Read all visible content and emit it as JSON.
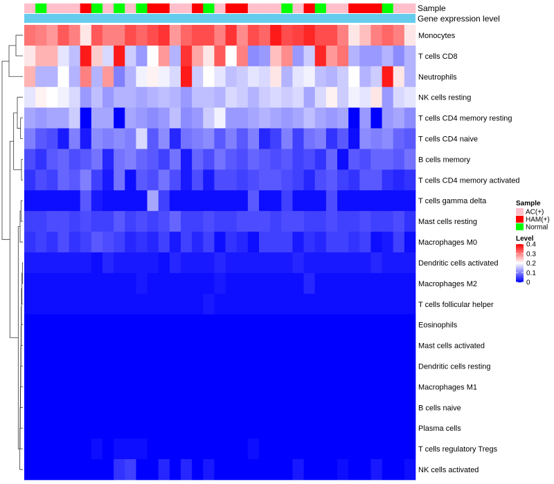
{
  "chart_data": {
    "type": "heatmap",
    "title": "",
    "annotation_tracks": [
      "Sample",
      "Gene expression level"
    ],
    "rows": [
      "Monocytes",
      "T cells CD8",
      "Neutrophils",
      "NK cells resting",
      "T cells CD4 memory resting",
      "T cells CD4 naive",
      "B cells memory",
      "T cells CD4 memory activated",
      "T cells gamma delta",
      "Mast cells resting",
      "Macrophages M0",
      "Dendritic cells activated",
      "Macrophages M2",
      "T cells follicular helper",
      "Eosinophils",
      "Mast cells activated",
      "Dendritic cells resting",
      "Macrophages M1",
      "B cells naive",
      "Plasma cells",
      "T cells regulatory  Tregs",
      "NK cells activated"
    ],
    "sample_groups": [
      "AC(+)",
      "Normal",
      "AC(+)",
      "AC(+)",
      "AC(+)",
      "HAM(+)",
      "Normal",
      "AC(+)",
      "Normal",
      "AC(+)",
      "Normal",
      "HAM(+)",
      "HAM(+)",
      "AC(+)",
      "AC(+)",
      "HAM(+)",
      "Normal",
      "AC(+)",
      "HAM(+)",
      "HAM(+)",
      "AC(+)",
      "AC(+)",
      "AC(+)",
      "Normal",
      "AC(+)",
      "HAM(+)",
      "Normal",
      "AC(+)",
      "AC(+)",
      "HAM(+)",
      "HAM(+)",
      "HAM(+)",
      "Normal",
      "AC(+)",
      "AC(+)"
    ],
    "values": [
      [
        0.31,
        0.3,
        0.28,
        0.33,
        0.3,
        0.22,
        0.33,
        0.3,
        0.3,
        0.34,
        0.32,
        0.34,
        0.36,
        0.28,
        0.32,
        0.34,
        0.34,
        0.3,
        0.36,
        0.29,
        0.34,
        0.32,
        0.38,
        0.34,
        0.35,
        0.37,
        0.34,
        0.34,
        0.3,
        0.22,
        0.25,
        0.3,
        0.32,
        0.3,
        0.22
      ],
      [
        0.22,
        0.26,
        0.26,
        0.18,
        0.15,
        0.38,
        0.24,
        0.17,
        0.38,
        0.16,
        0.12,
        0.2,
        0.28,
        0.14,
        0.36,
        0.27,
        0.22,
        0.33,
        0.2,
        0.3,
        0.11,
        0.12,
        0.25,
        0.29,
        0.12,
        0.16,
        0.37,
        0.28,
        0.31,
        0.14,
        0.12,
        0.12,
        0.14,
        0.11,
        0.14
      ],
      [
        0.26,
        0.14,
        0.14,
        0.2,
        0.14,
        0.3,
        0.14,
        0.28,
        0.1,
        0.14,
        0.19,
        0.21,
        0.19,
        0.17,
        0.38,
        0.16,
        0.2,
        0.18,
        0.15,
        0.16,
        0.18,
        0.17,
        0.22,
        0.14,
        0.18,
        0.19,
        0.15,
        0.14,
        0.16,
        0.2,
        0.14,
        0.16,
        0.38,
        0.22,
        0.14
      ],
      [
        0.18,
        0.21,
        0.2,
        0.19,
        0.17,
        0.12,
        0.15,
        0.12,
        0.14,
        0.14,
        0.13,
        0.14,
        0.15,
        0.14,
        0.12,
        0.15,
        0.15,
        0.14,
        0.17,
        0.16,
        0.14,
        0.16,
        0.17,
        0.16,
        0.17,
        0.13,
        0.17,
        0.21,
        0.16,
        0.19,
        0.18,
        0.22,
        0.12,
        0.17,
        0.18
      ],
      [
        0.13,
        0.12,
        0.13,
        0.13,
        0.16,
        0.0,
        0.13,
        0.13,
        0.0,
        0.13,
        0.12,
        0.11,
        0.12,
        0.15,
        0.11,
        0.12,
        0.16,
        0.19,
        0.12,
        0.12,
        0.13,
        0.14,
        0.13,
        0.12,
        0.13,
        0.15,
        0.13,
        0.12,
        0.13,
        0.0,
        0.12,
        0.0,
        0.12,
        0.13,
        0.11
      ],
      [
        0.1,
        0.07,
        0.06,
        0.02,
        0.1,
        0.02,
        0.11,
        0.1,
        0.11,
        0.1,
        0.17,
        0.07,
        0.11,
        0.03,
        0.09,
        0.1,
        0.11,
        0.07,
        0.1,
        0.07,
        0.1,
        0.03,
        0.05,
        0.1,
        0.05,
        0.09,
        0.1,
        0.04,
        0.07,
        0.01,
        0.11,
        0.1,
        0.11,
        0.08,
        0.07
      ],
      [
        0.06,
        0.04,
        0.07,
        0.08,
        0.06,
        0.07,
        0.09,
        0.03,
        0.09,
        0.1,
        0.08,
        0.07,
        0.05,
        0.09,
        0.02,
        0.08,
        0.06,
        0.09,
        0.07,
        0.06,
        0.08,
        0.07,
        0.06,
        0.07,
        0.05,
        0.06,
        0.04,
        0.08,
        0.01,
        0.07,
        0.06,
        0.08,
        0.08,
        0.07,
        0.09
      ],
      [
        0.04,
        0.06,
        0.05,
        0.08,
        0.07,
        0.1,
        0.05,
        0.02,
        0.09,
        0.01,
        0.07,
        0.06,
        0.09,
        0.06,
        0.02,
        0.06,
        0.02,
        0.06,
        0.06,
        0.05,
        0.06,
        0.07,
        0.07,
        0.06,
        0.05,
        0.03,
        0.06,
        0.07,
        0.05,
        0.04,
        0.07,
        0.07,
        0.04,
        0.03,
        0.04
      ],
      [
        0.01,
        0.01,
        0.01,
        0.01,
        0.01,
        0.07,
        0.02,
        0.01,
        0.01,
        0.01,
        0.01,
        0.13,
        0.05,
        0.01,
        0.01,
        0.01,
        0.01,
        0.01,
        0.01,
        0.01,
        0.07,
        0.01,
        0.01,
        0.05,
        0.01,
        0.01,
        0.01,
        0.06,
        0.01,
        0.01,
        0.01,
        0.01,
        0.01,
        0.01,
        0.01
      ],
      [
        0.05,
        0.05,
        0.06,
        0.06,
        0.05,
        0.06,
        0.05,
        0.05,
        0.07,
        0.05,
        0.06,
        0.05,
        0.06,
        0.08,
        0.05,
        0.05,
        0.06,
        0.05,
        0.05,
        0.06,
        0.06,
        0.06,
        0.05,
        0.06,
        0.06,
        0.05,
        0.05,
        0.06,
        0.05,
        0.05,
        0.06,
        0.05,
        0.05,
        0.06,
        0.04
      ],
      [
        0.04,
        0.05,
        0.04,
        0.06,
        0.04,
        0.05,
        0.07,
        0.06,
        0.05,
        0.03,
        0.04,
        0.03,
        0.05,
        0.02,
        0.05,
        0.03,
        0.05,
        0.01,
        0.04,
        0.03,
        0.01,
        0.05,
        0.05,
        0.05,
        0.02,
        0.04,
        0.03,
        0.05,
        0.05,
        0.04,
        0.05,
        0.01,
        0.02,
        0.05,
        0.01
      ],
      [
        0.02,
        0.02,
        0.02,
        0.02,
        0.02,
        0.02,
        0.01,
        0.03,
        0.02,
        0.02,
        0.02,
        0.02,
        0.01,
        0.03,
        0.02,
        0.02,
        0.02,
        0.03,
        0.02,
        0.02,
        0.02,
        0.02,
        0.02,
        0.02,
        0.03,
        0.02,
        0.02,
        0.02,
        0.02,
        0.02,
        0.02,
        0.03,
        0.02,
        0.02,
        0.02
      ],
      [
        0.01,
        0.01,
        0.01,
        0.01,
        0.01,
        0.01,
        0.01,
        0.01,
        0.01,
        0.01,
        0.02,
        0.01,
        0.01,
        0.01,
        0.01,
        0.01,
        0.01,
        0.02,
        0.01,
        0.01,
        0.01,
        0.01,
        0.01,
        0.01,
        0.01,
        0.03,
        0.01,
        0.01,
        0.01,
        0.01,
        0.01,
        0.01,
        0.01,
        0.01,
        0.01
      ],
      [
        0.01,
        0.01,
        0.01,
        0.01,
        0.01,
        0.01,
        0.01,
        0.01,
        0.01,
        0.01,
        0.01,
        0.01,
        0.01,
        0.01,
        0.01,
        0.01,
        0.02,
        0.01,
        0.01,
        0.01,
        0.01,
        0.01,
        0.01,
        0.01,
        0.01,
        0.01,
        0.01,
        0.01,
        0.01,
        0.01,
        0.01,
        0.01,
        0.01,
        0.01,
        0.01
      ],
      [
        0.0,
        0.0,
        0.0,
        0.0,
        0.0,
        0.0,
        0.0,
        0.0,
        0.0,
        0.0,
        0.0,
        0.0,
        0.0,
        0.0,
        0.0,
        0.0,
        0.0,
        0.0,
        0.0,
        0.0,
        0.0,
        0.0,
        0.0,
        0.0,
        0.0,
        0.0,
        0.0,
        0.0,
        0.0,
        0.0,
        0.0,
        0.0,
        0.0,
        0.0,
        0.0
      ],
      [
        0.0,
        0.0,
        0.0,
        0.0,
        0.0,
        0.0,
        0.0,
        0.0,
        0.0,
        0.0,
        0.0,
        0.0,
        0.0,
        0.0,
        0.0,
        0.0,
        0.0,
        0.0,
        0.0,
        0.0,
        0.0,
        0.0,
        0.0,
        0.0,
        0.0,
        0.0,
        0.0,
        0.0,
        0.0,
        0.0,
        0.0,
        0.0,
        0.0,
        0.0,
        0.0
      ],
      [
        0.0,
        0.0,
        0.0,
        0.0,
        0.0,
        0.0,
        0.0,
        0.0,
        0.0,
        0.0,
        0.0,
        0.0,
        0.0,
        0.0,
        0.0,
        0.0,
        0.0,
        0.0,
        0.0,
        0.0,
        0.0,
        0.0,
        0.0,
        0.0,
        0.0,
        0.0,
        0.0,
        0.0,
        0.0,
        0.0,
        0.0,
        0.0,
        0.0,
        0.0,
        0.0
      ],
      [
        0.0,
        0.0,
        0.0,
        0.0,
        0.0,
        0.0,
        0.0,
        0.0,
        0.0,
        0.0,
        0.0,
        0.0,
        0.0,
        0.0,
        0.0,
        0.0,
        0.0,
        0.0,
        0.0,
        0.0,
        0.0,
        0.0,
        0.0,
        0.0,
        0.0,
        0.0,
        0.0,
        0.0,
        0.0,
        0.0,
        0.0,
        0.0,
        0.0,
        0.0,
        0.0
      ],
      [
        0.0,
        0.0,
        0.0,
        0.0,
        0.0,
        0.0,
        0.0,
        0.0,
        0.0,
        0.0,
        0.0,
        0.0,
        0.0,
        0.0,
        0.0,
        0.0,
        0.0,
        0.0,
        0.0,
        0.0,
        0.0,
        0.0,
        0.0,
        0.0,
        0.0,
        0.0,
        0.0,
        0.0,
        0.0,
        0.0,
        0.0,
        0.0,
        0.0,
        0.0,
        0.0
      ],
      [
        0.0,
        0.0,
        0.0,
        0.0,
        0.0,
        0.0,
        0.0,
        0.0,
        0.0,
        0.0,
        0.0,
        0.0,
        0.0,
        0.0,
        0.0,
        0.0,
        0.0,
        0.0,
        0.0,
        0.0,
        0.0,
        0.0,
        0.0,
        0.0,
        0.0,
        0.0,
        0.0,
        0.0,
        0.0,
        0.0,
        0.0,
        0.0,
        0.0,
        0.0,
        0.0
      ],
      [
        0.0,
        0.0,
        0.0,
        0.0,
        0.0,
        0.0,
        0.01,
        0.0,
        0.01,
        0.01,
        0.01,
        0.0,
        0.0,
        0.0,
        0.0,
        0.0,
        0.0,
        0.0,
        0.0,
        0.0,
        0.01,
        0.0,
        0.0,
        0.0,
        0.0,
        0.0,
        0.0,
        0.0,
        0.0,
        0.0,
        0.0,
        0.0,
        0.0,
        0.0,
        0.0
      ],
      [
        0.0,
        0.0,
        0.0,
        0.0,
        0.0,
        0.0,
        0.0,
        0.0,
        0.04,
        0.05,
        0.0,
        0.0,
        0.03,
        0.0,
        0.03,
        0.0,
        0.02,
        0.0,
        0.0,
        0.0,
        0.0,
        0.0,
        0.0,
        0.0,
        0.02,
        0.0,
        0.0,
        0.0,
        0.01,
        0.0,
        0.0,
        0.02,
        0.0,
        0.0,
        0.01
      ]
    ],
    "dendrogram": [
      [
        0,
        1,
        0.15
      ],
      [
        22,
        2,
        0.3
      ],
      [
        4,
        5,
        0.05
      ],
      [
        24,
        3,
        0.12
      ],
      [
        6,
        7,
        0.03
      ],
      [
        26,
        25,
        0.2
      ],
      [
        8,
        9,
        0.04
      ],
      [
        28,
        10,
        0.06
      ],
      [
        11,
        12,
        0.01
      ],
      [
        30,
        13,
        0.02
      ],
      [
        31,
        14,
        0.03
      ],
      [
        32,
        15,
        0.035
      ],
      [
        33,
        16,
        0.04
      ],
      [
        34,
        17,
        0.045
      ],
      [
        35,
        18,
        0.05
      ],
      [
        36,
        19,
        0.055
      ],
      [
        37,
        20,
        0.06
      ],
      [
        38,
        21,
        0.065
      ],
      [
        29,
        39,
        0.1
      ],
      [
        27,
        40,
        0.28
      ],
      [
        23,
        41,
        0.45
      ]
    ],
    "legend": {
      "sample_title": "Sample",
      "sample_entries": [
        {
          "label": "AC(+)",
          "color": "#ffc0cb"
        },
        {
          "label": "HAM(+)",
          "color": "#ff0000"
        },
        {
          "label": "Normal",
          "color": "#00ff00"
        }
      ],
      "level_title": "Level",
      "level_ticks": [
        0.4,
        0.3,
        0.2,
        0.1,
        0
      ],
      "level_range": [
        0,
        0.4
      ],
      "gene_expression_color": "#66ccee"
    },
    "colors": {
      "low": "#0000ff",
      "mid": "#ffffff",
      "high": "#ff0000"
    }
  }
}
